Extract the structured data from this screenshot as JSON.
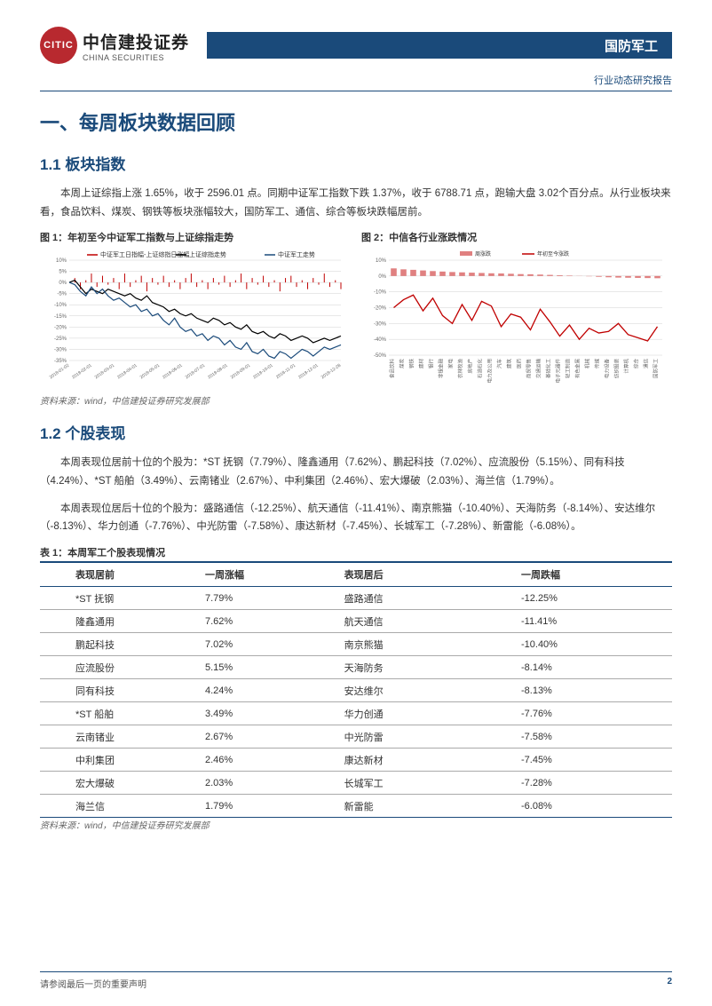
{
  "header": {
    "logo_inner": "CITIC",
    "logo_cn": "中信建投证券",
    "logo_en": "CHINA SECURITIES",
    "sector": "国防军工",
    "report_type": "行业动态研究报告"
  },
  "section1": {
    "title": "一、每周板块数据回顾",
    "s11_title": "1.1 板块指数",
    "s11_body": "本周上证综指上涨 1.65%，收于 2596.01 点。同期中证军工指数下跌 1.37%，收于 6788.71 点，跑输大盘 3.02个百分点。从行业板块来看，食品饮料、煤炭、钢铁等板块涨幅较大，国防军工、通信、综合等板块跌幅居前。",
    "chart1_title": "图 1：年初至今中证军工指数与上证综指走势",
    "chart2_title": "图 2：中信各行业涨跌情况",
    "chart_source": "资料来源：wind，中信建投证券研究发展部",
    "chart1": {
      "legend": [
        "中证军工日指幅-上证综指日涨幅",
        "上证综指走势",
        "中证军工走势"
      ],
      "legend_colors": [
        "#c00000",
        "#000000",
        "#1a4a7a"
      ],
      "ylim": [
        -35,
        10
      ],
      "yticks": [
        10,
        5,
        0,
        -5,
        -10,
        -15,
        -20,
        -25,
        -30,
        -35
      ],
      "xlabels": [
        "2018-01-02",
        "2018-02-01",
        "2018-03-01",
        "2018-04-01",
        "2018-05-01",
        "2018-06-01",
        "2018-07-01",
        "2018-08-01",
        "2018-09-01",
        "2018-10-01",
        "2018-11-01",
        "2018-12-01",
        "2018-12-28"
      ],
      "series_diff": [
        0,
        2,
        -3,
        1,
        4,
        -2,
        3,
        -1,
        2,
        -3,
        4,
        -2,
        1,
        3,
        -4,
        2,
        -1,
        3,
        -2,
        1,
        -3,
        2,
        4,
        -2,
        1,
        -3,
        2,
        -1,
        3,
        -2,
        1,
        4,
        -3,
        2,
        -1,
        3,
        -2,
        1,
        -4,
        2,
        3,
        -2,
        1,
        -3,
        2,
        -1,
        4,
        -2,
        1,
        -3
      ],
      "series_shz": [
        0,
        1,
        -2,
        -5,
        -3,
        -4,
        -5,
        -3,
        -4,
        -5,
        -6,
        -5,
        -7,
        -8,
        -6,
        -9,
        -10,
        -11,
        -13,
        -12,
        -14,
        -15,
        -14,
        -16,
        -17,
        -18,
        -16,
        -17,
        -19,
        -18,
        -20,
        -21,
        -19,
        -22,
        -23,
        -22,
        -24,
        -25,
        -23,
        -24,
        -26,
        -25,
        -24,
        -25,
        -27,
        -26,
        -25,
        -26,
        -25,
        -24
      ],
      "series_jg": [
        0,
        -1,
        -4,
        -6,
        -2,
        -5,
        -3,
        -6,
        -8,
        -7,
        -9,
        -11,
        -10,
        -13,
        -12,
        -15,
        -14,
        -17,
        -19,
        -16,
        -20,
        -22,
        -21,
        -24,
        -23,
        -26,
        -24,
        -25,
        -28,
        -26,
        -29,
        -30,
        -27,
        -31,
        -32,
        -30,
        -33,
        -34,
        -31,
        -32,
        -34,
        -32,
        -30,
        -31,
        -33,
        -31,
        -29,
        -30,
        -29,
        -28
      ],
      "grid_color": "#d0d0d0"
    },
    "chart2": {
      "legend": [
        "周涨跌",
        "年初至今涨跌"
      ],
      "legend_colors": [
        "#e08080",
        "#c00000"
      ],
      "ylim": [
        -50,
        10
      ],
      "yticks": [
        10,
        0,
        -10,
        -20,
        -30,
        -40,
        -50
      ],
      "categories": [
        "食品饮料",
        "煤炭",
        "钢铁",
        "建材",
        "银行",
        "非银金融",
        "家电",
        "农林牧渔",
        "房地产",
        "石油石化",
        "电力及公用",
        "汽车",
        "建筑",
        "医药",
        "商贸零售",
        "交通运输",
        "基础化工",
        "电子元器件",
        "轻工制造",
        "有色金属",
        "机械",
        "传媒",
        "电力设备",
        "纺织服装",
        "计算机",
        "综合",
        "通信",
        "国防军工"
      ],
      "weekly": [
        4.8,
        4.2,
        3.9,
        3.5,
        3.1,
        2.8,
        2.5,
        2.3,
        2.1,
        1.9,
        1.7,
        1.6,
        1.4,
        1.2,
        1.1,
        0.9,
        0.7,
        0.5,
        0.3,
        0.1,
        -0.2,
        -0.5,
        -0.8,
        -1.0,
        -1.1,
        -1.2,
        -1.3,
        -1.4
      ],
      "ytd": [
        -20,
        -15,
        -12,
        -22,
        -14,
        -25,
        -30,
        -18,
        -28,
        -16,
        -19,
        -32,
        -24,
        -26,
        -34,
        -21,
        -29,
        -38,
        -31,
        -40,
        -33,
        -36,
        -35,
        -30,
        -37,
        -39,
        -41,
        -32
      ],
      "grid_color": "#d0d0d0"
    },
    "s12_title": "1.2 个股表现",
    "s12_body1": "本周表现位居前十位的个股为：*ST 抚钢（7.79%）、隆鑫通用（7.62%）、鹏起科技（7.02%）、应流股份（5.15%）、同有科技（4.24%）、*ST 船舶（3.49%）、云南锗业（2.67%）、中利集团（2.46%）、宏大爆破（2.03%）、海兰信（1.79%）。",
    "s12_body2": "本周表现位居后十位的个股为：盛路通信（-12.25%）、航天通信（-11.41%）、南京熊猫（-10.40%）、天海防务（-8.14%）、安达维尔（-8.13%）、华力创通（-7.76%）、中光防雷（-7.58%）、康达新材（-7.45%）、长城军工（-7.28%）、新雷能（-6.08%）。"
  },
  "table": {
    "title": "表 1：本周军工个股表现情况",
    "headers": [
      "表现居前",
      "一周涨幅",
      "表现居后",
      "一周跌幅"
    ],
    "rows": [
      [
        "*ST 抚钢",
        "7.79%",
        "盛路通信",
        "-12.25%"
      ],
      [
        "隆鑫通用",
        "7.62%",
        "航天通信",
        "-11.41%"
      ],
      [
        "鹏起科技",
        "7.02%",
        "南京熊猫",
        "-10.40%"
      ],
      [
        "应流股份",
        "5.15%",
        "天海防务",
        "-8.14%"
      ],
      [
        "同有科技",
        "4.24%",
        "安达维尔",
        "-8.13%"
      ],
      [
        "*ST 船舶",
        "3.49%",
        "华力创通",
        "-7.76%"
      ],
      [
        "云南锗业",
        "2.67%",
        "中光防雷",
        "-7.58%"
      ],
      [
        "中利集团",
        "2.46%",
        "康达新材",
        "-7.45%"
      ],
      [
        "宏大爆破",
        "2.03%",
        "长城军工",
        "-7.28%"
      ],
      [
        "海兰信",
        "1.79%",
        "新雷能",
        "-6.08%"
      ]
    ],
    "source": "资料来源：wind，中信建投证券研究发展部"
  },
  "footer": {
    "disclaimer": "请参阅最后一页的重要声明",
    "page": "2"
  }
}
